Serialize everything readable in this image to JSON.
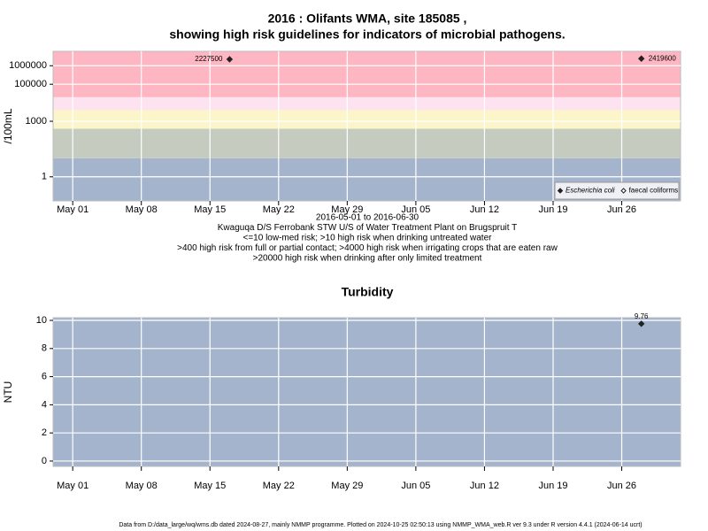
{
  "chart_data": [
    {
      "type": "scatter",
      "title": [
        "2016 : Olifants WMA, site 185085 ,",
        "showing high risk guidelines for indicators of microbial pathogens."
      ],
      "y_label": "/100mL",
      "ylog": true,
      "ylim": [
        0.05,
        6000000
      ],
      "yticks": [
        1,
        1000,
        100000,
        1000000
      ],
      "xlim": [
        "2016-04-29",
        "2016-07-02"
      ],
      "xticks": [
        {
          "value": "2016-05-01",
          "label": "May 01"
        },
        {
          "value": "2016-05-08",
          "label": "May 08"
        },
        {
          "value": "2016-05-15",
          "label": "May 15"
        },
        {
          "value": "2016-05-22",
          "label": "May 22"
        },
        {
          "value": "2016-05-29",
          "label": "May 29"
        },
        {
          "value": "2016-06-05",
          "label": "Jun 05"
        },
        {
          "value": "2016-06-12",
          "label": "Jun 12"
        },
        {
          "value": "2016-06-19",
          "label": "Jun 19"
        },
        {
          "value": "2016-06-26",
          "label": "Jun 26"
        }
      ],
      "grid": true,
      "band_edges": [
        10,
        400,
        4000,
        20000
      ],
      "band_colors": [
        "#a3b4cc",
        "#c5ccbf",
        "#fcf5c9",
        "#fde2f0",
        "#ffb6c3"
      ],
      "x": [
        "2016-05-17",
        "2016-06-28"
      ],
      "series": [
        {
          "name": "Escherichia coli",
          "italic": true,
          "color": "#222222",
          "filled": true,
          "values": [
            2227500,
            2419600
          ]
        },
        {
          "name": "faecal coliforms",
          "italic": false,
          "color": "#222222",
          "filled": false,
          "values": [
            null,
            null
          ]
        }
      ],
      "data_labels": true,
      "legend": "bottom right",
      "annotations": [
        "2016-05-01 to 2016-06-30",
        "Kwaguqa D/S Ferrobank STW U/S of Water Treatment Plant on Brugspruit T",
        "<=10 low-med risk; >10 high risk when drinking untreated water",
        ">400 high risk from full or partial contact; >4000 high risk when irrigating crops that are eaten raw",
        ">20000 high risk when drinking after only limited treatment"
      ]
    },
    {
      "type": "scatter",
      "title": [
        "Turbidity"
      ],
      "y_label": "NTU",
      "ylog": false,
      "ylim": [
        -0.38,
        10.19
      ],
      "yticks": [
        0,
        2,
        4,
        6,
        8,
        10
      ],
      "xlim": [
        "2016-04-29",
        "2016-07-02"
      ],
      "xticks": [
        {
          "value": "2016-05-01",
          "label": "May 01"
        },
        {
          "value": "2016-05-08",
          "label": "May 08"
        },
        {
          "value": "2016-05-15",
          "label": "May 15"
        },
        {
          "value": "2016-05-22",
          "label": "May 22"
        },
        {
          "value": "2016-05-29",
          "label": "May 29"
        },
        {
          "value": "2016-06-05",
          "label": "Jun 05"
        },
        {
          "value": "2016-06-12",
          "label": "Jun 12"
        },
        {
          "value": "2016-06-19",
          "label": "Jun 19"
        },
        {
          "value": "2016-06-26",
          "label": "Jun 26"
        }
      ],
      "grid": true,
      "band_edges": [],
      "band_colors": [
        "#a3b4cc"
      ],
      "x": [
        "2016-06-28"
      ],
      "series": [
        {
          "name": "Turbidity",
          "italic": false,
          "color": "#222222",
          "filled": true,
          "values": [
            9.76
          ]
        }
      ],
      "data_labels": true,
      "legend": null,
      "annotations": []
    }
  ],
  "footer": "Data from D:/data_large/wq/wms.db dated 2024-08-27, mainly NMMP programme. Plotted on 2024-10-25 02:50:13 using NMMP_WMA_web.R ver 9.3 under R version 4.4.1 (2024-06-14 ucrt)"
}
